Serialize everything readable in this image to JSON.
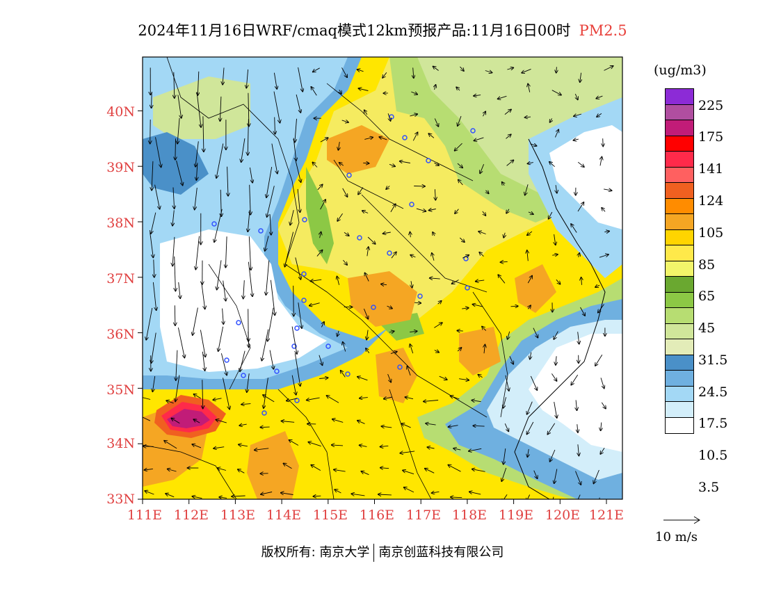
{
  "title": {
    "main": "2024年11月16日WRF/cmaq模式12km预报产品:11月16日00时",
    "pollutant": "PM2.5"
  },
  "axes": {
    "lat_labels": [
      "40N",
      "39N",
      "38N",
      "37N",
      "36N",
      "35N",
      "34N",
      "33N"
    ],
    "lon_labels": [
      "111E",
      "112E",
      "113E",
      "114E",
      "115E",
      "116E",
      "117E",
      "118E",
      "119E",
      "120E",
      "121E"
    ],
    "lat_range": [
      33,
      40.98
    ],
    "lon_range": [
      111,
      121.35
    ]
  },
  "legend": {
    "units": "(ug/m3)",
    "labels": [
      "225",
      "175",
      "141",
      "124",
      "105",
      "85",
      "65",
      "45",
      "31.5",
      "24.5",
      "17.5",
      "10.5",
      "3.5"
    ],
    "colors": [
      "#8c2bd6",
      "#b04ea0",
      "#c11c78",
      "#ff0000",
      "#ff2a4a",
      "#ff6060",
      "#f06020",
      "#ff8c00",
      "#f5a623",
      "#ffd400",
      "#ffe94a",
      "#f2f56a",
      "#6aa830",
      "#8cc845",
      "#b7dd72",
      "#d0e69a",
      "#e3ecb8",
      "#4a90c8",
      "#6fb0e0",
      "#a3d8f5",
      "#d3eefa",
      "#ffffff"
    ]
  },
  "wind_key": {
    "speed_label": "10 m/s"
  },
  "footer": {
    "copyright_label": "版权所有:",
    "org1": "南京大学",
    "org2": "南京创蓝科技有限公司"
  }
}
